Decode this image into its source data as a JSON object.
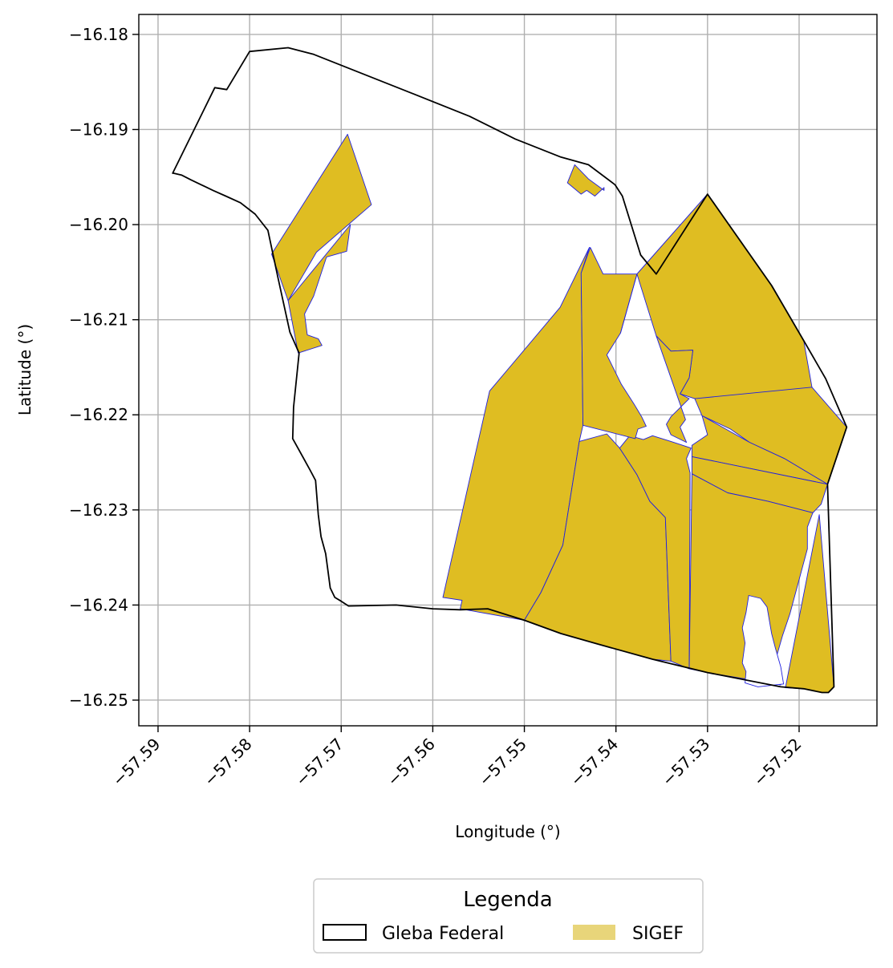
{
  "chart_data": {
    "type": "map",
    "xlabel": "Longitude (°)",
    "ylabel": "Latitude (°)",
    "xlim": [
      -57.5921,
      -57.5115
    ],
    "ylim": [
      -16.2527,
      -16.1779
    ],
    "grid": true,
    "x_ticks": [
      {
        "value": -57.59,
        "label": "−57.59"
      },
      {
        "value": -57.58,
        "label": "−57.58"
      },
      {
        "value": -57.57,
        "label": "−57.57"
      },
      {
        "value": -57.56,
        "label": "−57.56"
      },
      {
        "value": -57.55,
        "label": "−57.55"
      },
      {
        "value": -57.54,
        "label": "−57.54"
      },
      {
        "value": -57.53,
        "label": "−57.53"
      },
      {
        "value": -57.52,
        "label": "−57.52"
      }
    ],
    "y_ticks": [
      {
        "value": -16.18,
        "label": "−16.18"
      },
      {
        "value": -16.19,
        "label": "−16.19"
      },
      {
        "value": -16.2,
        "label": "−16.20"
      },
      {
        "value": -16.21,
        "label": "−16.21"
      },
      {
        "value": -16.22,
        "label": "−16.22"
      },
      {
        "value": -16.23,
        "label": "−16.23"
      },
      {
        "value": -16.24,
        "label": "−16.24"
      },
      {
        "value": -16.25,
        "label": "−16.25"
      }
    ],
    "legend": {
      "title": "Legenda",
      "placement": "bottom-center",
      "entries": [
        {
          "label": "Gleba Federal",
          "style": "outline",
          "edge_color": "#000000"
        },
        {
          "label": "SIGEF",
          "style": "fill",
          "color": "#e8d57a"
        }
      ]
    },
    "colors": {
      "gleba_edge": "#000000",
      "sigef_fill": "#dfbd22",
      "sigef_edge": "#2020e0",
      "grid": "#b0b0b0"
    },
    "gleba_federal": [
      [
        -57.5884,
        -16.1946
      ],
      [
        -57.5883,
        -16.1946
      ],
      [
        -57.5874,
        -16.1948
      ],
      [
        -57.5864,
        -16.1953
      ],
      [
        -57.5853,
        -16.1958
      ],
      [
        -57.584,
        -16.1964
      ],
      [
        -57.5826,
        -16.197
      ],
      [
        -57.581,
        -16.1977
      ],
      [
        -57.5794,
        -16.1989
      ],
      [
        -57.578,
        -16.2006
      ],
      [
        -57.5769,
        -16.2056
      ],
      [
        -57.5756,
        -16.2113
      ],
      [
        -57.5746,
        -16.2135
      ],
      [
        -57.5752,
        -16.2192
      ],
      [
        -57.5753,
        -16.2225
      ],
      [
        -57.5734,
        -16.2258
      ],
      [
        -57.5728,
        -16.2269
      ],
      [
        -57.5725,
        -16.2305
      ],
      [
        -57.5722,
        -16.2328
      ],
      [
        -57.5717,
        -16.2346
      ],
      [
        -57.5712,
        -16.2382
      ],
      [
        -57.5707,
        -16.2392
      ],
      [
        -57.57,
        -16.2396
      ],
      [
        -57.5692,
        -16.2401
      ],
      [
        -57.564,
        -16.24
      ],
      [
        -57.56,
        -16.2404
      ],
      [
        -57.557,
        -16.2405
      ],
      [
        -57.554,
        -16.2404
      ],
      [
        -57.55,
        -16.2416
      ],
      [
        -57.546,
        -16.243
      ],
      [
        -57.542,
        -16.2441
      ],
      [
        -57.536,
        -16.2457
      ],
      [
        -57.53,
        -16.2471
      ],
      [
        -57.522,
        -16.2486
      ],
      [
        -57.5195,
        -16.2488
      ],
      [
        -57.5175,
        -16.2492
      ],
      [
        -57.5168,
        -16.2492
      ],
      [
        -57.5162,
        -16.2486
      ],
      [
        -57.5169,
        -16.2273
      ],
      [
        -57.5148,
        -16.2213
      ],
      [
        -57.5171,
        -16.2162
      ],
      [
        -57.5195,
        -16.2122
      ],
      [
        -57.523,
        -16.2064
      ],
      [
        -57.53,
        -16.1968
      ],
      [
        -57.5356,
        -16.2052
      ],
      [
        -57.5373,
        -16.2032
      ],
      [
        -57.5393,
        -16.197
      ],
      [
        -57.5401,
        -16.1958
      ],
      [
        -57.543,
        -16.1937
      ],
      [
        -57.546,
        -16.1929
      ],
      [
        -57.551,
        -16.191
      ],
      [
        -57.556,
        -16.1886
      ],
      [
        -57.562,
        -16.1863
      ],
      [
        -57.573,
        -16.1821
      ],
      [
        -57.5758,
        -16.1814
      ],
      [
        -57.58,
        -16.1818
      ],
      [
        -57.5825,
        -16.1858
      ],
      [
        -57.5838,
        -16.1856
      ],
      [
        -57.5884,
        -16.1946
      ]
    ],
    "gleba_holes": [
      [
        [
          -57.5217,
          -16.2483
        ],
        [
          -57.522,
          -16.2465
        ],
        [
          -57.5226,
          -16.2445
        ],
        [
          -57.523,
          -16.243
        ],
        [
          -57.5235,
          -16.2402
        ],
        [
          -57.5242,
          -16.2393
        ],
        [
          -57.5255,
          -16.239
        ],
        [
          -57.5258,
          -16.2408
        ],
        [
          -57.5262,
          -16.2424
        ],
        [
          -57.5259,
          -16.244
        ],
        [
          -57.5262,
          -16.2461
        ],
        [
          -57.5258,
          -16.247
        ],
        [
          -57.5259,
          -16.2482
        ],
        [
          -57.5245,
          -16.2486
        ]
      ]
    ],
    "sigef_parcels": [
      [
        [
          -57.5693,
          -16.1905
        ],
        [
          -57.5667,
          -16.1979
        ],
        [
          -57.5727,
          -16.2029
        ],
        [
          -57.5758,
          -16.208
        ],
        [
          -57.5776,
          -16.2031
        ]
      ],
      [
        [
          -57.5758,
          -16.208
        ],
        [
          -57.569,
          -16.2
        ],
        [
          -57.5694,
          -16.2028
        ],
        [
          -57.5716,
          -16.2034
        ],
        [
          -57.573,
          -16.2075
        ],
        [
          -57.574,
          -16.2094
        ],
        [
          -57.5737,
          -16.2116
        ],
        [
          -57.5725,
          -16.212
        ],
        [
          -57.5721,
          -16.2127
        ],
        [
          -57.5747,
          -16.2135
        ]
      ],
      [
        [
          -57.5589,
          -16.2392
        ],
        [
          -57.5568,
          -16.2395
        ],
        [
          -57.557,
          -16.2404
        ],
        [
          -57.55,
          -16.2416
        ],
        [
          -57.5482,
          -16.2387
        ],
        [
          -57.5458,
          -16.2337
        ],
        [
          -57.544,
          -16.2228
        ],
        [
          -57.5436,
          -16.2211
        ],
        [
          -57.5438,
          -16.2051
        ],
        [
          -57.5429,
          -16.2024
        ],
        [
          -57.5461,
          -16.2087
        ],
        [
          -57.5538,
          -16.2175
        ]
      ],
      [
        [
          -57.55,
          -16.2416
        ],
        [
          -57.5482,
          -16.2387
        ],
        [
          -57.5458,
          -16.2337
        ],
        [
          -57.544,
          -16.2228
        ],
        [
          -57.541,
          -16.222
        ],
        [
          -57.5396,
          -16.2235
        ],
        [
          -57.5377,
          -16.2263
        ],
        [
          -57.5363,
          -16.2291
        ],
        [
          -57.5346,
          -16.2308
        ],
        [
          -57.534,
          -16.2459
        ],
        [
          -57.536,
          -16.2457
        ],
        [
          -57.542,
          -16.2441
        ],
        [
          -57.546,
          -16.243
        ]
      ],
      [
        [
          -57.5363,
          -16.2291
        ],
        [
          -57.5377,
          -16.2263
        ],
        [
          -57.5396,
          -16.2235
        ],
        [
          -57.5385,
          -16.2222
        ],
        [
          -57.537,
          -16.2226
        ],
        [
          -57.536,
          -16.2222
        ],
        [
          -57.534,
          -16.2228
        ],
        [
          -57.5318,
          -16.2235
        ],
        [
          -57.5323,
          -16.2246
        ],
        [
          -57.5319,
          -16.2261
        ],
        [
          -57.532,
          -16.2467
        ],
        [
          -57.534,
          -16.2459
        ],
        [
          -57.5346,
          -16.2308
        ]
      ],
      [
        [
          -57.5436,
          -16.2211
        ],
        [
          -57.5438,
          -16.2051
        ],
        [
          -57.5428,
          -16.2024
        ],
        [
          -57.5414,
          -16.2052
        ],
        [
          -57.5377,
          -16.2052
        ],
        [
          -57.5395,
          -16.2114
        ],
        [
          -57.541,
          -16.2137
        ],
        [
          -57.5394,
          -16.2168
        ],
        [
          -57.538,
          -16.2189
        ],
        [
          -57.5372,
          -16.2202
        ],
        [
          -57.5367,
          -16.2212
        ],
        [
          -57.5376,
          -16.2215
        ],
        [
          -57.5379,
          -16.2225
        ]
      ],
      [
        [
          -57.5395,
          -16.2114
        ],
        [
          -57.5377,
          -16.2052
        ],
        [
          -57.53,
          -16.1968
        ],
        [
          -57.5356,
          -16.2052
        ],
        [
          -57.5377,
          -16.2052
        ]
      ],
      [
        [
          -57.5377,
          -16.2052
        ],
        [
          -57.53,
          -16.1968
        ],
        [
          -57.523,
          -16.2064
        ],
        [
          -57.5195,
          -16.2122
        ],
        [
          -57.5186,
          -16.2171
        ],
        [
          -57.5214,
          -16.2225
        ],
        [
          -57.5275,
          -16.2197
        ],
        [
          -57.5314,
          -16.2183
        ],
        [
          -57.533,
          -16.2178
        ],
        [
          -57.532,
          -16.2161
        ],
        [
          -57.5316,
          -16.2132
        ],
        [
          -57.534,
          -16.2133
        ],
        [
          -57.5356,
          -16.2117
        ]
      ],
      [
        [
          -57.5356,
          -16.2117
        ],
        [
          -57.534,
          -16.2133
        ],
        [
          -57.5316,
          -16.2132
        ],
        [
          -57.532,
          -16.2161
        ],
        [
          -57.533,
          -16.2178
        ],
        [
          -57.532,
          -16.2183
        ],
        [
          -57.534,
          -16.2202
        ],
        [
          -57.5345,
          -16.221
        ],
        [
          -57.534,
          -16.2221
        ],
        [
          -57.5323,
          -16.2229
        ],
        [
          -57.533,
          -16.2213
        ],
        [
          -57.5324,
          -16.2205
        ]
      ],
      [
        [
          -57.5186,
          -16.2171
        ],
        [
          -57.5148,
          -16.2213
        ],
        [
          -57.5169,
          -16.2273
        ],
        [
          -57.5216,
          -16.2246
        ],
        [
          -57.5254,
          -16.2229
        ],
        [
          -57.5275,
          -16.2215
        ],
        [
          -57.5306,
          -16.2201
        ],
        [
          -57.5314,
          -16.2183
        ]
      ],
      [
        [
          -57.5169,
          -16.2273
        ],
        [
          -57.5216,
          -16.2246
        ],
        [
          -57.5254,
          -16.2229
        ],
        [
          -57.5306,
          -16.2201
        ],
        [
          -57.53,
          -16.2221
        ],
        [
          -57.5317,
          -16.2232
        ],
        [
          -57.5317,
          -16.2244
        ]
      ],
      [
        [
          -57.5317,
          -16.2244
        ],
        [
          -57.5169,
          -16.2273
        ],
        [
          -57.5176,
          -16.2294
        ],
        [
          -57.5185,
          -16.2303
        ],
        [
          -57.5234,
          -16.2291
        ],
        [
          -57.5278,
          -16.2282
        ],
        [
          -57.5317,
          -16.2262
        ]
      ],
      [
        [
          -57.5317,
          -16.2262
        ],
        [
          -57.5278,
          -16.2282
        ],
        [
          -57.5234,
          -16.2291
        ],
        [
          -57.5185,
          -16.2303
        ],
        [
          -57.5191,
          -16.2318
        ],
        [
          -57.5191,
          -16.2341
        ],
        [
          -57.521,
          -16.2409
        ],
        [
          -57.5218,
          -16.2432
        ],
        [
          -57.5227,
          -16.2462
        ],
        [
          -57.522,
          -16.2484
        ],
        [
          -57.53,
          -16.2471
        ],
        [
          -57.532,
          -16.2467
        ]
      ],
      [
        [
          -57.5178,
          -16.2305
        ],
        [
          -57.5162,
          -16.2486
        ],
        [
          -57.5168,
          -16.2492
        ],
        [
          -57.5175,
          -16.2492
        ],
        [
          -57.5195,
          -16.2488
        ],
        [
          -57.5215,
          -16.2487
        ]
      ],
      [
        [
          -57.5413,
          -16.1961
        ],
        [
          -57.5413,
          -16.1964
        ],
        [
          -57.543,
          -16.1952
        ],
        [
          -57.5445,
          -16.1937
        ],
        [
          -57.5453,
          -16.1956
        ],
        [
          -57.5438,
          -16.1968
        ],
        [
          -57.5432,
          -16.1964
        ],
        [
          -57.5423,
          -16.197
        ]
      ]
    ]
  }
}
